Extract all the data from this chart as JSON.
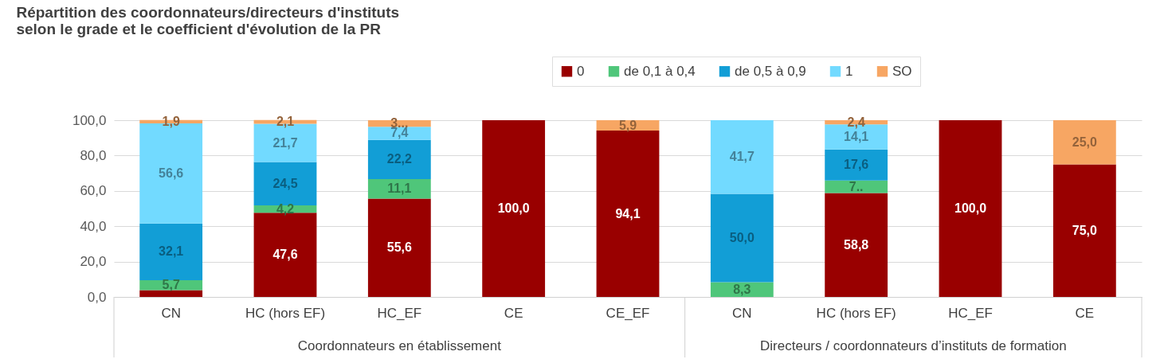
{
  "chart_data": {
    "type": "bar",
    "stacked": true,
    "title": "Répartition des coordonnateurs/directeurs d'instituts\nselon le grade et le coefficient d'évolution de la PR",
    "categories": [
      "CN",
      "HC (hors EF)",
      "HC_EF",
      "CE",
      "CE_EF",
      "CN",
      "HC (hors EF)",
      "HC_EF",
      "CE"
    ],
    "series": [
      {
        "name": "0",
        "color": "#990000",
        "values": [
          3.8,
          47.6,
          55.6,
          100.0,
          94.1,
          0,
          58.8,
          100.0,
          75.0
        ],
        "value_labels": [
          null,
          "47,6",
          "55,6",
          "100,0",
          "94,1",
          null,
          "58,8",
          "100,0",
          "75,0"
        ]
      },
      {
        "name": "de 0,1 à 0,4",
        "color": "#4fc67a",
        "values": [
          5.7,
          4.2,
          11.1,
          0,
          0,
          8.3,
          7.1,
          0,
          0
        ],
        "value_labels": [
          "5,7",
          "4,2",
          "11,1",
          null,
          null,
          "8,3",
          "7..",
          null,
          null
        ]
      },
      {
        "name": "de 0,5 à 0,9",
        "color": "#129ed6",
        "values": [
          32.1,
          24.5,
          22.2,
          0,
          0,
          50.0,
          17.6,
          0,
          0
        ],
        "value_labels": [
          "32,1",
          "24,5",
          "22,2",
          null,
          null,
          "50,0",
          "17,6",
          null,
          null
        ]
      },
      {
        "name": "1",
        "color": "#72daff",
        "values": [
          56.6,
          21.7,
          7.4,
          0,
          0,
          41.7,
          14.1,
          0,
          0
        ],
        "value_labels": [
          "56,6",
          "21,7",
          "7,4",
          null,
          null,
          "41,7",
          "14,1",
          null,
          null
        ]
      },
      {
        "name": "SO",
        "color": "#f7a663",
        "values": [
          1.9,
          2.1,
          3.7,
          0,
          5.9,
          0,
          2.4,
          0,
          25.0
        ],
        "value_labels": [
          "1,9",
          "2,1",
          "3...",
          null,
          "5,9",
          null,
          "2,4",
          null,
          "25,0"
        ]
      }
    ],
    "ylim": [
      0,
      100
    ],
    "yticks": [
      {
        "value": 0,
        "label": "0,0"
      },
      {
        "value": 20,
        "label": "20,0"
      },
      {
        "value": 40,
        "label": "40,0"
      },
      {
        "value": 60,
        "label": "60,0"
      },
      {
        "value": 80,
        "label": "80,0"
      },
      {
        "value": 100,
        "label": "100,0"
      }
    ],
    "grid": "y",
    "legend": "top right",
    "annotations": [
      "Coordonnateurs en établissement",
      "Directeurs / coordonnateurs d’instituts de formation"
    ]
  }
}
